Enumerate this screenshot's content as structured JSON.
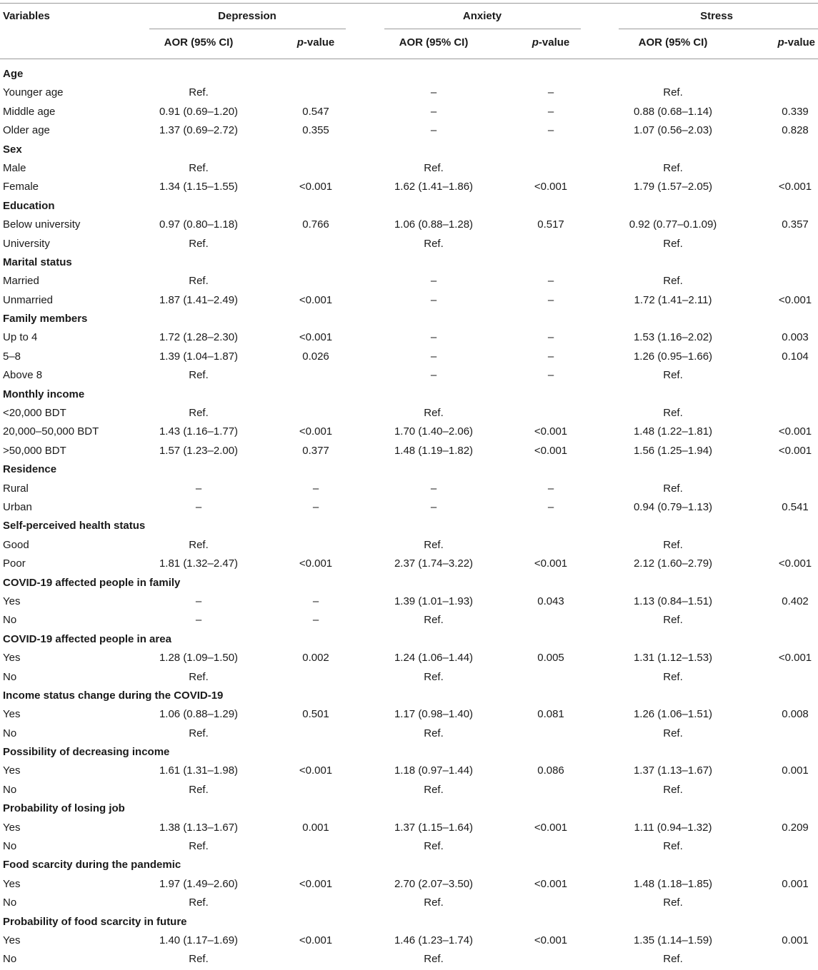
{
  "header": {
    "variables": "Variables",
    "groups": [
      "Depression",
      "Anxiety",
      "Stress"
    ],
    "aor": "AOR (95% CI)",
    "p_prefix": "p",
    "p_suffix": "-value"
  },
  "rows": [
    {
      "label": "Age",
      "section": true
    },
    {
      "label": "Younger age",
      "cells": [
        "Ref.",
        "",
        "–",
        "–",
        "Ref.",
        ""
      ]
    },
    {
      "label": "Middle age",
      "cells": [
        "0.91 (0.69–1.20)",
        "0.547",
        "–",
        "–",
        "0.88 (0.68–1.14)",
        "0.339"
      ]
    },
    {
      "label": "Older age",
      "cells": [
        "1.37 (0.69–2.72)",
        "0.355",
        "–",
        "–",
        "1.07 (0.56–2.03)",
        "0.828"
      ]
    },
    {
      "label": "Sex",
      "section": true
    },
    {
      "label": "Male",
      "cells": [
        "Ref.",
        "",
        "Ref.",
        "",
        "Ref.",
        ""
      ]
    },
    {
      "label": "Female",
      "cells": [
        "1.34 (1.15–1.55)",
        "<0.001",
        "1.62 (1.41–1.86)",
        "<0.001",
        "1.79 (1.57–2.05)",
        "<0.001"
      ]
    },
    {
      "label": "Education",
      "section": true
    },
    {
      "label": "Below university",
      "cells": [
        "0.97 (0.80–1.18)",
        "0.766",
        "1.06 (0.88–1.28)",
        "0.517",
        "0.92 (0.77–0.1.09)",
        "0.357"
      ]
    },
    {
      "label": "University",
      "cells": [
        "Ref.",
        "",
        "Ref.",
        "",
        "Ref.",
        ""
      ]
    },
    {
      "label": "Marital status",
      "section": true
    },
    {
      "label": "Married",
      "cells": [
        "Ref.",
        "",
        "–",
        "–",
        "Ref.",
        ""
      ]
    },
    {
      "label": "Unmarried",
      "cells": [
        "1.87 (1.41–2.49)",
        "<0.001",
        "–",
        "–",
        "1.72 (1.41–2.11)",
        "<0.001"
      ]
    },
    {
      "label": "Family members",
      "section": true
    },
    {
      "label": "Up to 4",
      "cells": [
        "1.72 (1.28–2.30)",
        "<0.001",
        "–",
        "–",
        "1.53 (1.16–2.02)",
        "0.003"
      ]
    },
    {
      "label": "5–8",
      "cells": [
        "1.39 (1.04–1.87)",
        "0.026",
        "–",
        "–",
        "1.26 (0.95–1.66)",
        "0.104"
      ]
    },
    {
      "label": "Above 8",
      "cells": [
        "Ref.",
        "",
        "–",
        "–",
        "Ref.",
        ""
      ]
    },
    {
      "label": "Monthly income",
      "section": true
    },
    {
      "label": "<20,000 BDT",
      "cells": [
        "Ref.",
        "",
        "Ref.",
        "",
        "Ref.",
        ""
      ]
    },
    {
      "label": "20,000–50,000 BDT",
      "cells": [
        "1.43 (1.16–1.77)",
        "<0.001",
        "1.70 (1.40–2.06)",
        "<0.001",
        "1.48 (1.22–1.81)",
        "<0.001"
      ]
    },
    {
      "label": ">50,000 BDT",
      "cells": [
        "1.57 (1.23–2.00)",
        "0.377",
        "1.48 (1.19–1.82)",
        "<0.001",
        "1.56 (1.25–1.94)",
        "<0.001"
      ]
    },
    {
      "label": "Residence",
      "section": true
    },
    {
      "label": "Rural",
      "cells": [
        "–",
        "–",
        "–",
        "–",
        "Ref.",
        ""
      ]
    },
    {
      "label": "Urban",
      "cells": [
        "–",
        "–",
        "–",
        "–",
        "0.94 (0.79–1.13)",
        "0.541"
      ]
    },
    {
      "label": "Self-perceived health status",
      "section": true
    },
    {
      "label": "Good",
      "cells": [
        "Ref.",
        "",
        "Ref.",
        "",
        "Ref.",
        ""
      ]
    },
    {
      "label": "Poor",
      "cells": [
        "1.81 (1.32–2.47)",
        "<0.001",
        "2.37 (1.74–3.22)",
        "<0.001",
        "2.12 (1.60–2.79)",
        "<0.001"
      ]
    },
    {
      "label": "COVID-19 affected people in family",
      "section": true
    },
    {
      "label": "Yes",
      "cells": [
        "–",
        "–",
        "1.39 (1.01–1.93)",
        "0.043",
        "1.13 (0.84–1.51)",
        "0.402"
      ]
    },
    {
      "label": "No",
      "cells": [
        "–",
        "–",
        "Ref.",
        "",
        "Ref.",
        ""
      ]
    },
    {
      "label": "COVID-19 affected people in area",
      "section": true
    },
    {
      "label": "Yes",
      "cells": [
        "1.28 (1.09–1.50)",
        "0.002",
        "1.24 (1.06–1.44)",
        "0.005",
        "1.31 (1.12–1.53)",
        "<0.001"
      ]
    },
    {
      "label": "No",
      "cells": [
        "Ref.",
        "",
        "Ref.",
        "",
        "Ref.",
        ""
      ]
    },
    {
      "label": "Income status change during the COVID-19",
      "section": true
    },
    {
      "label": "Yes",
      "cells": [
        "1.06 (0.88–1.29)",
        "0.501",
        "1.17 (0.98–1.40)",
        "0.081",
        "1.26 (1.06–1.51)",
        "0.008"
      ]
    },
    {
      "label": "No",
      "cells": [
        "Ref.",
        "",
        "Ref.",
        "",
        "Ref.",
        ""
      ]
    },
    {
      "label": "Possibility of decreasing income",
      "section": true
    },
    {
      "label": "Yes",
      "cells": [
        "1.61 (1.31–1.98)",
        "<0.001",
        "1.18 (0.97–1.44)",
        "0.086",
        "1.37 (1.13–1.67)",
        "0.001"
      ]
    },
    {
      "label": "No",
      "cells": [
        "Ref.",
        "",
        "Ref.",
        "",
        "Ref.",
        ""
      ]
    },
    {
      "label": "Probability of losing job",
      "section": true
    },
    {
      "label": "Yes",
      "cells": [
        "1.38 (1.13–1.67)",
        "0.001",
        "1.37 (1.15–1.64)",
        "<0.001",
        "1.11 (0.94–1.32)",
        "0.209"
      ]
    },
    {
      "label": "No",
      "cells": [
        "Ref.",
        "",
        "Ref.",
        "",
        "Ref.",
        ""
      ]
    },
    {
      "label": "Food scarcity during the pandemic",
      "section": true
    },
    {
      "label": "Yes",
      "cells": [
        "1.97 (1.49–2.60)",
        "<0.001",
        "2.70 (2.07–3.50)",
        "<0.001",
        "1.48 (1.18–1.85)",
        "0.001"
      ]
    },
    {
      "label": "No",
      "cells": [
        "Ref.",
        "",
        "Ref.",
        "",
        "Ref.",
        ""
      ]
    },
    {
      "label": "Probability of food scarcity in future",
      "section": true
    },
    {
      "label": "Yes",
      "cells": [
        "1.40 (1.17–1.69)",
        "<0.001",
        "1.46 (1.23–1.74)",
        "<0.001",
        "1.35 (1.14–1.59)",
        "0.001"
      ]
    },
    {
      "label": "No",
      "cells": [
        "Ref.",
        "",
        "Ref.",
        "",
        "Ref.",
        ""
      ]
    }
  ]
}
